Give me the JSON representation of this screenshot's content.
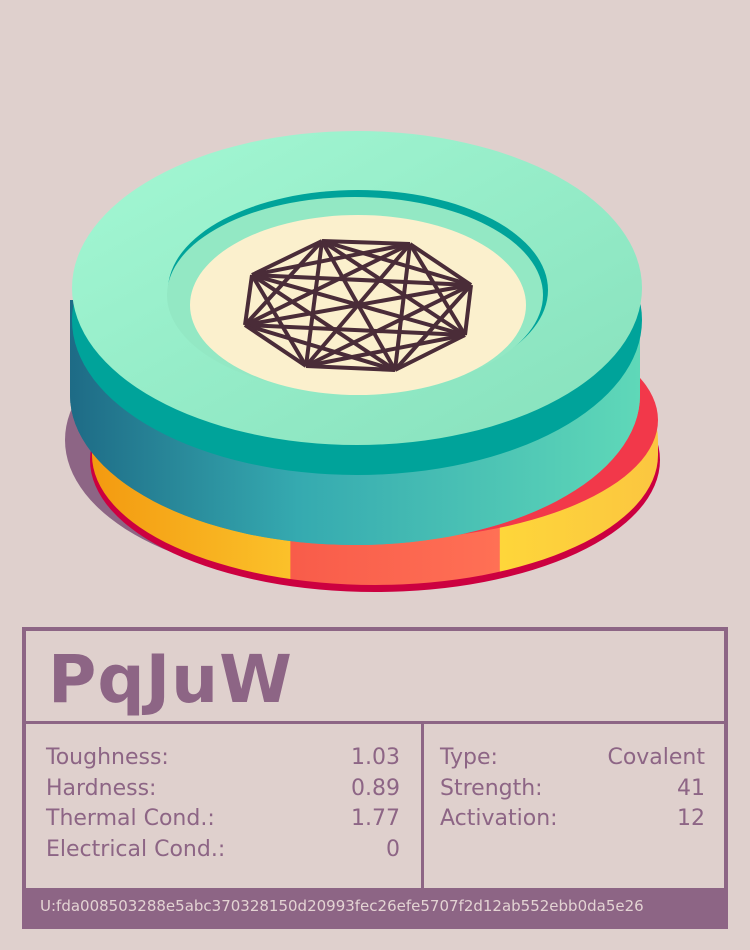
{
  "colors": {
    "background": "#dfd0cd",
    "accent": "#8d6585",
    "disc_top": "#95ecc6",
    "disc_band": "#ff6a50",
    "center": "#fbf0cd",
    "glyph": "#4a2c38"
  },
  "icon": "complete-graph-octagon-icon",
  "card": {
    "title": "PqJuW",
    "properties": [
      {
        "label": "Toughness:",
        "value": "1.03"
      },
      {
        "label": "Hardness:",
        "value": "0.89"
      },
      {
        "label": "Thermal Cond.:",
        "value": "1.77"
      },
      {
        "label": "Electrical Cond.:",
        "value": "0"
      }
    ],
    "bond": [
      {
        "label": "Type:",
        "value": "Covalent"
      },
      {
        "label": "Strength:",
        "value": "41"
      },
      {
        "label": "Activation:",
        "value": "12"
      }
    ],
    "footer": "U:fda008503288e5abc370328150d20993fec26efe5707f2d12ab552ebb0da5e26"
  }
}
